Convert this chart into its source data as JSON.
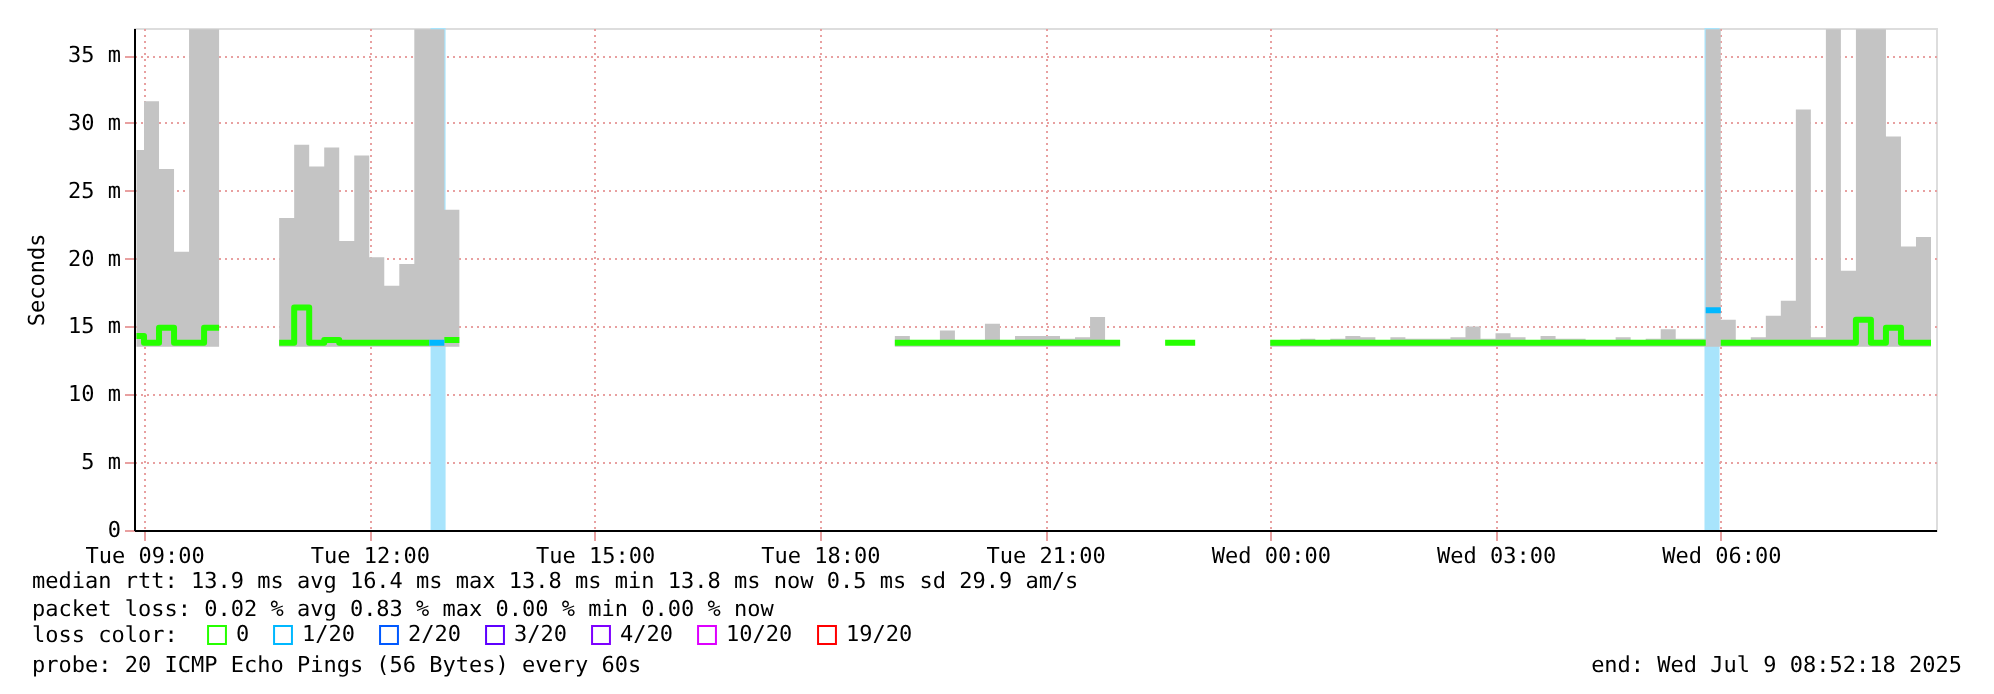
{
  "chart_data": {
    "type": "step",
    "ylabel": "Seconds",
    "xlim": [
      "2025-07-08T08:52",
      "2025-07-09T08:52"
    ],
    "xticks": [
      {
        "value": "2025-07-08T09:00",
        "label": "Tue 09:00"
      },
      {
        "value": "2025-07-08T12:00",
        "label": "Tue 12:00"
      },
      {
        "value": "2025-07-08T15:00",
        "label": "Tue 15:00"
      },
      {
        "value": "2025-07-08T18:00",
        "label": "Tue 18:00"
      },
      {
        "value": "2025-07-08T21:00",
        "label": "Tue 21:00"
      },
      {
        "value": "2025-07-09T00:00",
        "label": "Wed 00:00"
      },
      {
        "value": "2025-07-09T03:00",
        "label": "Wed 03:00"
      },
      {
        "value": "2025-07-09T06:00",
        "label": "Wed 06:00"
      }
    ],
    "ylim": [
      0,
      37
    ],
    "yticks": [
      0,
      {
        "value": 5,
        "label": "5 m"
      },
      {
        "value": 10,
        "label": "10 m"
      },
      {
        "value": 15,
        "label": "15 m"
      },
      {
        "value": 20,
        "label": "20 m"
      },
      {
        "value": 25,
        "label": "25 m"
      },
      {
        "value": 30,
        "label": "30 m"
      },
      {
        "value": 35,
        "label": "35 m"
      }
    ],
    "grid": true,
    "legend": "bottom left",
    "legend_title": "loss color:",
    "series": [
      {
        "name": "0",
        "color": "#26ff00",
        "x": [
          "2025-07-08T08:54",
          "2025-07-08T09:00",
          "2025-07-08T09:12",
          "2025-07-08T09:24",
          "2025-07-08T09:36",
          "2025-07-08T09:48",
          "2025-07-08T10:00",
          "2025-07-08T10:24",
          "2025-07-08T10:48",
          "2025-07-08T11:00",
          "2025-07-08T11:12",
          "2025-07-08T11:24",
          "2025-07-08T11:36",
          "2025-07-08T11:48",
          "2025-07-08T12:00",
          "2025-07-08T12:12",
          "2025-07-08T12:24",
          "2025-07-08T12:36",
          "2025-07-08T12:48",
          "2025-07-08T12:54",
          "2025-07-08T13:00",
          "2025-07-08T13:12",
          "2025-07-08T16:00",
          "2025-07-08T19:00",
          "2025-07-08T19:12",
          "2025-07-08T19:24",
          "2025-07-08T19:36",
          "2025-07-08T19:48",
          "2025-07-08T20:00",
          "2025-07-08T20:12",
          "2025-07-08T20:24",
          "2025-07-08T20:36",
          "2025-07-08T20:48",
          "2025-07-08T21:00",
          "2025-07-08T21:12",
          "2025-07-08T21:24",
          "2025-07-08T21:36",
          "2025-07-08T21:48",
          "2025-07-08T22:00",
          "2025-07-08T22:18",
          "2025-07-08T22:36",
          "2025-07-08T23:00",
          "2025-07-08T23:30",
          "2025-07-09T00:00",
          "2025-07-09T00:12",
          "2025-07-09T00:24",
          "2025-07-09T00:36",
          "2025-07-09T00:48",
          "2025-07-09T01:00",
          "2025-07-09T01:12",
          "2025-07-09T01:24",
          "2025-07-09T01:36",
          "2025-07-09T01:48",
          "2025-07-09T02:00",
          "2025-07-09T02:12",
          "2025-07-09T02:24",
          "2025-07-09T02:36",
          "2025-07-09T02:48",
          "2025-07-09T03:00",
          "2025-07-09T03:12",
          "2025-07-09T03:24",
          "2025-07-09T03:36",
          "2025-07-09T03:48",
          "2025-07-09T04:00",
          "2025-07-09T04:12",
          "2025-07-09T04:24",
          "2025-07-09T04:36",
          "2025-07-09T04:48",
          "2025-07-09T05:00",
          "2025-07-09T05:12",
          "2025-07-09T05:24",
          "2025-07-09T05:36",
          "2025-07-09T05:48",
          "2025-07-09T05:54",
          "2025-07-09T06:00",
          "2025-07-09T06:12",
          "2025-07-09T06:24",
          "2025-07-09T06:36",
          "2025-07-09T06:48",
          "2025-07-09T07:00",
          "2025-07-09T07:12",
          "2025-07-09T07:24",
          "2025-07-09T07:36",
          "2025-07-09T07:48",
          "2025-07-09T08:00",
          "2025-07-09T08:12",
          "2025-07-09T08:24",
          "2025-07-09T08:36",
          "2025-07-09T08:48"
        ],
        "values": [
          14.3,
          13.8,
          14.9,
          13.8,
          13.8,
          14.9,
          14.9,
          null,
          13.8,
          16.4,
          13.8,
          14.0,
          13.8,
          13.8,
          13.8,
          13.8,
          13.8,
          13.8,
          13.8,
          null,
          14.0,
          14.0,
          null,
          13.8,
          13.8,
          13.8,
          13.8,
          13.8,
          13.8,
          13.8,
          13.8,
          13.8,
          13.8,
          13.8,
          13.8,
          13.8,
          13.8,
          13.8,
          13.8,
          null,
          13.8,
          13.8,
          null,
          13.8,
          13.8,
          13.8,
          13.8,
          13.8,
          13.8,
          13.8,
          13.8,
          13.8,
          13.8,
          13.8,
          13.8,
          13.8,
          13.8,
          13.8,
          13.8,
          13.8,
          13.8,
          13.8,
          13.8,
          13.8,
          13.8,
          13.8,
          13.8,
          13.8,
          13.8,
          13.8,
          13.8,
          13.8,
          13.8,
          null,
          13.8,
          13.8,
          13.8,
          13.8,
          13.8,
          13.8,
          13.8,
          13.8,
          13.8,
          15.5,
          13.8,
          14.9,
          13.8,
          13.8,
          13.8
        ],
        "lower": [
          13.5,
          13.5,
          13.5,
          13.5,
          13.5,
          13.5,
          13.5,
          null,
          13.5,
          13.5,
          13.5,
          13.5,
          13.5,
          13.5,
          13.5,
          13.5,
          13.5,
          13.5,
          13.5,
          13.5,
          13.5,
          13.5,
          null,
          13.5,
          13.5,
          13.5,
          13.5,
          13.5,
          13.5,
          13.5,
          13.5,
          13.5,
          13.5,
          13.5,
          13.5,
          13.5,
          13.5,
          13.5,
          13.5,
          null,
          null,
          null,
          null,
          13.5,
          13.5,
          13.5,
          13.5,
          13.5,
          13.5,
          13.5,
          13.5,
          13.5,
          13.5,
          13.5,
          13.5,
          13.5,
          13.5,
          13.5,
          13.5,
          13.5,
          13.5,
          13.5,
          13.5,
          13.5,
          13.5,
          13.5,
          13.5,
          13.5,
          13.5,
          13.5,
          13.5,
          13.5,
          13.5,
          13.5,
          13.5,
          13.5,
          13.5,
          13.5,
          13.5,
          13.5,
          13.5,
          13.5,
          13.5,
          13.5,
          13.5,
          13.5,
          13.5,
          13.5,
          13.5
        ],
        "upper": [
          28.0,
          31.6,
          26.6,
          20.5,
          36.9,
          36.9,
          36.9,
          null,
          23.0,
          28.4,
          26.8,
          28.2,
          21.3,
          27.6,
          20.1,
          18.0,
          19.6,
          36.9,
          36.9,
          36.9,
          23.6,
          23.6,
          null,
          14.3,
          14.0,
          14.0,
          14.7,
          14.0,
          14.0,
          15.2,
          14.0,
          14.3,
          14.3,
          14.3,
          14.1,
          14.2,
          15.7,
          14.0,
          14.0,
          null,
          null,
          null,
          null,
          14.0,
          14.0,
          14.1,
          14.0,
          14.1,
          14.3,
          14.2,
          14.0,
          14.2,
          14.1,
          14.1,
          14.1,
          14.2,
          15.0,
          14.1,
          14.5,
          14.2,
          14.0,
          14.3,
          14.1,
          14.1,
          14.0,
          14.0,
          14.2,
          14.0,
          14.1,
          14.8,
          14.1,
          14.1,
          36.9,
          36.9,
          15.5,
          14.0,
          14.2,
          15.8,
          16.9,
          31.0,
          14.2,
          36.9,
          19.1,
          36.9,
          36.9,
          29.0,
          20.9,
          21.6,
          21.6
        ]
      },
      {
        "name": "1/20",
        "color": "#00b8ff",
        "x": [
          "2025-07-08T12:48",
          "2025-07-08T13:00",
          "2025-07-08T13:06",
          "2025-07-09T05:48",
          "2025-07-09T06:00"
        ],
        "values": [
          13.8,
          13.8,
          null,
          16.2,
          16.2
        ]
      },
      {
        "name": "2/20",
        "color": "#0059ff"
      },
      {
        "name": "3/20",
        "color": "#5e00ff"
      },
      {
        "name": "4/20",
        "color": "#7e00ff"
      },
      {
        "name": "10/20",
        "color": "#dd00ff"
      },
      {
        "name": "19/20",
        "color": "#ff0000"
      }
    ],
    "bands": [
      {
        "axis": "x",
        "from": "2025-07-08T12:49",
        "to": "2025-07-08T13:01",
        "color": "#a8e4fc"
      },
      {
        "axis": "x",
        "from": "2025-07-09T05:47",
        "to": "2025-07-09T05:59",
        "color": "#a8e4fc"
      }
    ],
    "annotations": [
      "median rtt:  13.9 ms avg  16.4 ms max  13.8 ms min  13.8 ms now  0.5 ms sd  29.9   am/s",
      "packet loss: 0.02 % avg  0.83 % max  0.00 % min  0.00 % now",
      "probe:       20 ICMP Echo Pings (56 Bytes) every 60s",
      "end: Wed Jul  9 08:52:18 2025"
    ]
  }
}
